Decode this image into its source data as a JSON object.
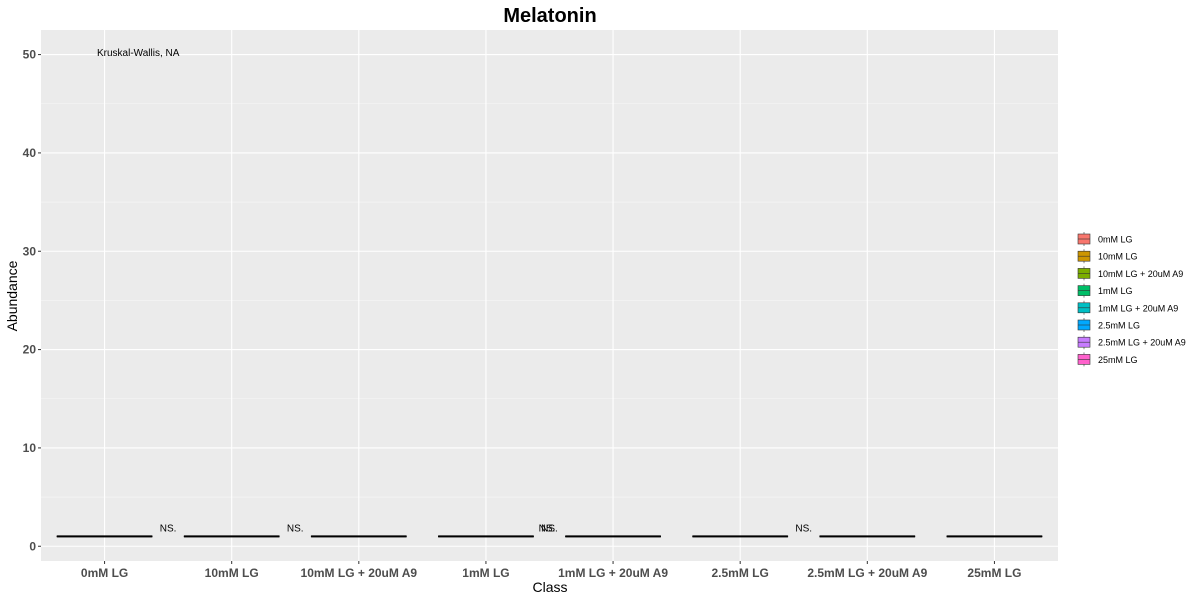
{
  "chart_data": {
    "type": "box",
    "title": "Melatonin",
    "xlabel": "Class",
    "ylabel": "Abundance",
    "categories": [
      "0mM LG",
      "10mM LG",
      "10mM LG + 20uM A9",
      "1mM LG",
      "1mM LG + 20uM A9",
      "2.5mM LG",
      "2.5mM LG + 20uM A9",
      "25mM LG"
    ],
    "values": [
      1,
      1,
      1,
      1,
      1,
      1,
      1,
      1
    ],
    "ylim": [
      -1.5,
      52.5
    ],
    "yticks": [
      0,
      10,
      20,
      30,
      40,
      50
    ],
    "colors": [
      "#F8766D",
      "#CD9600",
      "#7CAE00",
      "#00BE67",
      "#00BFC4",
      "#00A9FF",
      "#C77CFF",
      "#FF61CC"
    ],
    "grid": true,
    "legend_position": "right",
    "legend": [
      "0mM LG",
      "10mM LG",
      "10mM LG + 20uM A9",
      "1mM LG",
      "1mM LG + 20uM A9",
      "2.5mM LG",
      "2.5mM LG + 20uM A9",
      "25mM LG"
    ],
    "test_label": "Kruskal-Wallis, NA",
    "significance": [
      {
        "category": "0mM LG",
        "label": "NS."
      },
      {
        "category": "10mM LG",
        "label": "NS."
      },
      {
        "category": "1mM LG",
        "label": "NS."
      },
      {
        "category": "1mM LG",
        "label": "NS.",
        "side": "right"
      },
      {
        "category": "2.5mM LG",
        "label": "NS."
      }
    ]
  }
}
